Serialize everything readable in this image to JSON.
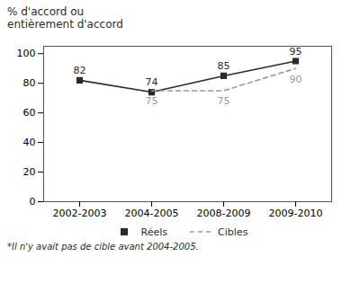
{
  "chart_data": {
    "type": "line",
    "y_label": "% d'accord ou\nentièrement d'accord",
    "caption": "*Il n'y avait pas de cible avant 2004-2005.",
    "categories": [
      "2002-2003",
      "2004-2005",
      "2008-2009",
      "2009-2010"
    ],
    "series": [
      {
        "name": "Réels",
        "color": "#2b2b2b",
        "values": [
          82,
          74,
          85,
          95
        ],
        "marker": "square",
        "line_style": "solid"
      },
      {
        "name": "Cibles",
        "color": "#999999",
        "values": [
          null,
          75,
          75,
          90
        ],
        "marker": "none",
        "line_style": "dashed"
      }
    ],
    "ylim": [
      0,
      105
    ],
    "yticks": [
      0,
      20,
      40,
      60,
      80,
      100
    ],
    "grid": false,
    "legend": "bottom",
    "data_labels": true
  }
}
